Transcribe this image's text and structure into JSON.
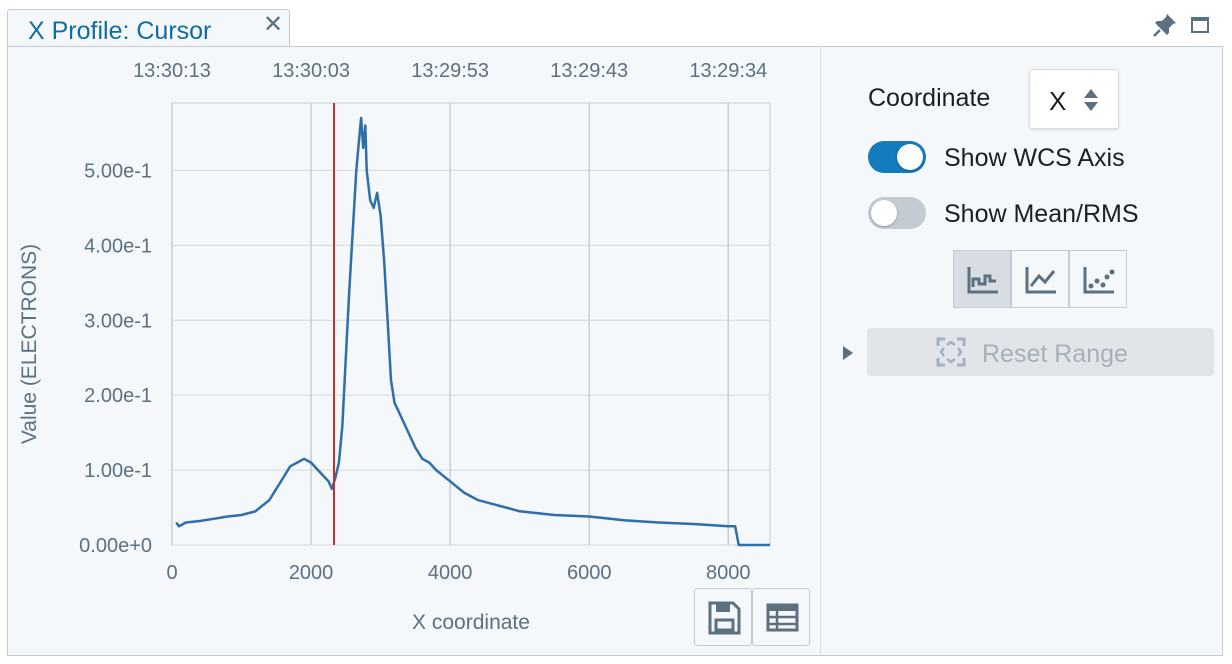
{
  "tab": {
    "title": "X Profile: Cursor",
    "close_glyph": "✕"
  },
  "window_icons": [
    "pin-icon",
    "maximize-icon"
  ],
  "settings": {
    "coordinate_label": "Coordinate",
    "coordinate_value": "X",
    "show_wcs_axis": {
      "label": "Show WCS Axis",
      "on": true
    },
    "show_mean_rms": {
      "label": "Show Mean/RMS",
      "on": false
    },
    "plot_types": [
      {
        "icon": "step-plot-icon",
        "active": true
      },
      {
        "icon": "line-plot-icon",
        "active": false
      },
      {
        "icon": "scatter-plot-icon",
        "active": false
      }
    ],
    "reset_range_label": "Reset Range"
  },
  "plot_buttons": [
    "save-icon",
    "table-icon"
  ],
  "colors": {
    "accent": "#137cbd",
    "line": "#2f6ea8",
    "cursor_marker": "#c23030"
  },
  "chart_data": {
    "type": "line",
    "xlabel": "X coordinate",
    "ylabel": "Value (ELECTRONS)",
    "xlim": [
      0,
      8600
    ],
    "ylim": [
      0,
      0.59
    ],
    "x_ticks": [
      0,
      2000,
      4000,
      6000,
      8000
    ],
    "x_tick_labels": [
      "0",
      "2000",
      "4000",
      "6000",
      "8000"
    ],
    "y_ticks": [
      0,
      0.1,
      0.2,
      0.3,
      0.4,
      0.5
    ],
    "y_tick_labels": [
      "0.00e+0",
      "1.00e-1",
      "2.00e-1",
      "3.00e-1",
      "4.00e-1",
      "5.00e-1"
    ],
    "top_axis_label_positions": [
      0,
      2000,
      4000,
      6000,
      8000
    ],
    "top_axis_labels": [
      "13:30:13",
      "13:30:03",
      "13:29:53",
      "13:29:43",
      "13:29:34"
    ],
    "cursor_x": 2330,
    "grid": true,
    "series": [
      {
        "x": [
          60,
          100,
          200,
          400,
          600,
          800,
          1000,
          1200,
          1400,
          1500,
          1600,
          1700,
          1800,
          1900,
          2000,
          2100,
          2200,
          2250,
          2300,
          2350,
          2400,
          2450,
          2500,
          2550,
          2600,
          2650,
          2700,
          2720,
          2750,
          2780,
          2800,
          2850,
          2900,
          2950,
          3000,
          3050,
          3100,
          3150,
          3200,
          3300,
          3400,
          3500,
          3600,
          3700,
          3800,
          4000,
          4200,
          4400,
          4600,
          4800,
          5000,
          5500,
          6000,
          6500,
          7000,
          7500,
          8000,
          8100,
          8150,
          8600
        ],
        "y": [
          0.03,
          0.025,
          0.03,
          0.032,
          0.035,
          0.038,
          0.04,
          0.045,
          0.06,
          0.075,
          0.09,
          0.105,
          0.11,
          0.115,
          0.11,
          0.1,
          0.09,
          0.085,
          0.075,
          0.09,
          0.11,
          0.16,
          0.25,
          0.34,
          0.42,
          0.5,
          0.55,
          0.57,
          0.53,
          0.56,
          0.5,
          0.46,
          0.45,
          0.47,
          0.44,
          0.38,
          0.3,
          0.22,
          0.19,
          0.17,
          0.15,
          0.13,
          0.115,
          0.11,
          0.1,
          0.085,
          0.07,
          0.06,
          0.055,
          0.05,
          0.045,
          0.04,
          0.038,
          0.033,
          0.03,
          0.028,
          0.025,
          0.025,
          0.0,
          0.0
        ]
      }
    ]
  }
}
